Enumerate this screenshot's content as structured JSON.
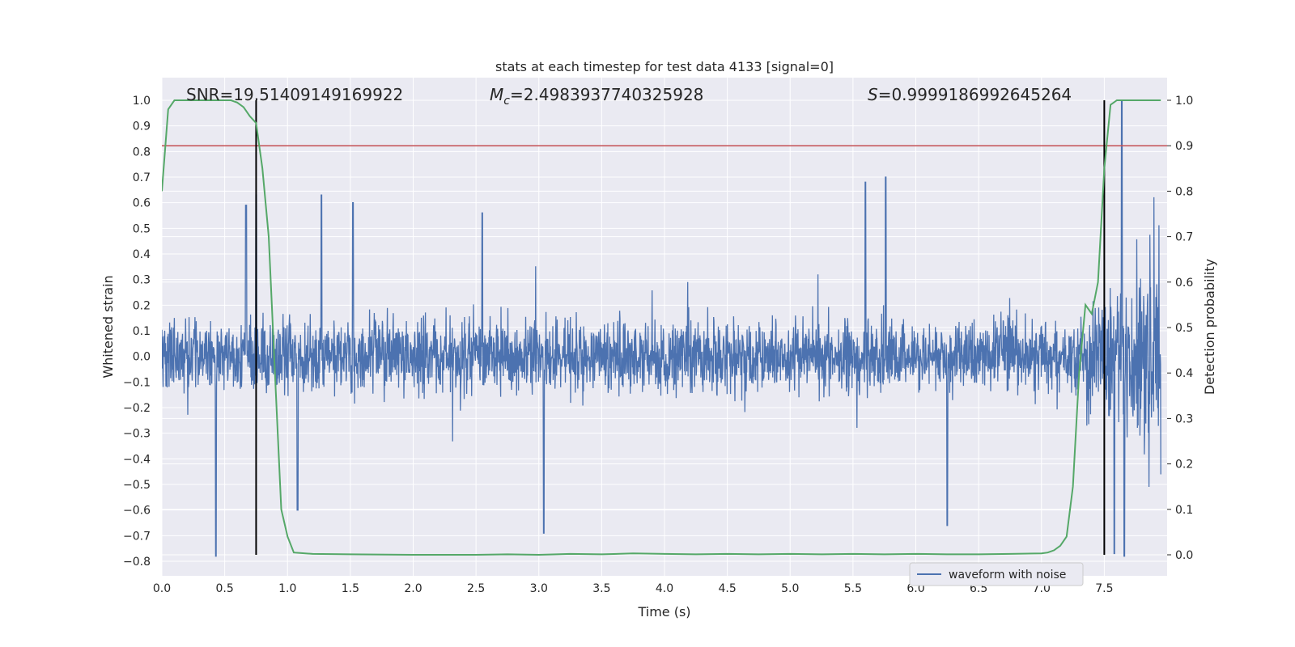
{
  "chart_data": {
    "type": "line",
    "title": "stats at each timestep for test data 4133 [signal=0]",
    "xlabel": "Time (s)",
    "ylabel": "Whitened strain",
    "y2label": "Detection probability",
    "xlim": [
      0.0,
      8.0
    ],
    "ylim": [
      -0.8,
      1.0
    ],
    "y2lim": [
      0.0,
      1.0
    ],
    "xticks": [
      "0.0",
      "0.5",
      "1.0",
      "1.5",
      "2.0",
      "2.5",
      "3.0",
      "3.5",
      "4.0",
      "4.5",
      "5.0",
      "5.5",
      "6.0",
      "6.5",
      "7.0",
      "7.5"
    ],
    "yticks": [
      "1.0",
      "0.9",
      "0.8",
      "0.7",
      "0.6",
      "0.5",
      "0.4",
      "0.3",
      "0.2",
      "0.1",
      "0.0",
      "−0.1",
      "−0.2",
      "−0.3",
      "−0.4",
      "−0.5",
      "−0.6",
      "−0.7",
      "−0.8"
    ],
    "y2ticks": [
      "1.0",
      "0.9",
      "0.8",
      "0.7",
      "0.6",
      "0.5",
      "0.4",
      "0.3",
      "0.2",
      "0.1",
      "0.0"
    ],
    "grid": true,
    "legend_position": "lower-right",
    "annotations": {
      "snr": "SNR=19.51409149169922",
      "mc_symbol": "M",
      "mc_sub": "c",
      "mc_value": "=2.4983937740325928",
      "s_symbol": "S",
      "s_value": "=0.9999186992645264"
    },
    "threshold_probability": 0.9,
    "event_markers_time": [
      0.75,
      7.5
    ],
    "series": [
      {
        "name": "waveform with noise",
        "axis": "left",
        "color": "#4c72b0",
        "description": "noisy whitened strain, mostly within ±0.35 with spikes up to 0.7; larger excursion near 7.6 s",
        "spikes": [
          {
            "x": 0.43,
            "y": -0.78
          },
          {
            "x": 0.67,
            "y": 0.59
          },
          {
            "x": 0.75,
            "y": 0.63
          },
          {
            "x": 1.08,
            "y": -0.6
          },
          {
            "x": 1.27,
            "y": 0.63
          },
          {
            "x": 1.52,
            "y": 0.6
          },
          {
            "x": 2.55,
            "y": 0.56
          },
          {
            "x": 3.04,
            "y": -0.69
          },
          {
            "x": 5.76,
            "y": 0.7
          },
          {
            "x": 5.6,
            "y": 0.68
          },
          {
            "x": 6.25,
            "y": -0.66
          },
          {
            "x": 7.58,
            "y": -0.77
          },
          {
            "x": 7.64,
            "y": 1.0
          },
          {
            "x": 7.66,
            "y": -0.78
          }
        ]
      },
      {
        "name": "",
        "axis": "right",
        "color": "#55a868",
        "x": [
          0.0,
          0.05,
          0.1,
          0.15,
          0.2,
          0.3,
          0.4,
          0.5,
          0.55,
          0.6,
          0.65,
          0.7,
          0.75,
          0.8,
          0.85,
          0.9,
          0.95,
          1.0,
          1.05,
          1.1,
          1.2,
          1.5,
          2.0,
          2.5,
          2.75,
          3.0,
          3.25,
          3.5,
          3.75,
          4.0,
          4.25,
          4.5,
          4.75,
          5.0,
          5.25,
          5.5,
          5.75,
          6.0,
          6.25,
          6.5,
          6.75,
          7.0,
          7.05,
          7.1,
          7.15,
          7.2,
          7.25,
          7.3,
          7.35,
          7.4,
          7.45,
          7.5,
          7.55,
          7.6,
          7.65,
          7.7,
          7.8,
          7.95
        ],
        "y": [
          0.8,
          0.98,
          1.0,
          1.0,
          1.0,
          1.0,
          1.0,
          1.0,
          1.0,
          0.995,
          0.985,
          0.965,
          0.95,
          0.85,
          0.7,
          0.4,
          0.1,
          0.04,
          0.005,
          0.004,
          0.002,
          0.001,
          0.0,
          0.0,
          0.001,
          0.0,
          0.002,
          0.001,
          0.003,
          0.002,
          0.001,
          0.002,
          0.001,
          0.002,
          0.001,
          0.002,
          0.001,
          0.002,
          0.001,
          0.001,
          0.002,
          0.003,
          0.005,
          0.01,
          0.02,
          0.04,
          0.15,
          0.4,
          0.55,
          0.53,
          0.6,
          0.85,
          0.99,
          1.0,
          1.0,
          1.0,
          1.0,
          1.0
        ]
      }
    ],
    "colors": {
      "plot_background": "#eaeaf2",
      "grid": "#ffffff",
      "threshold": "#c44e52",
      "marker": "#000000",
      "strain": "#4c72b0",
      "probability": "#55a868"
    }
  }
}
